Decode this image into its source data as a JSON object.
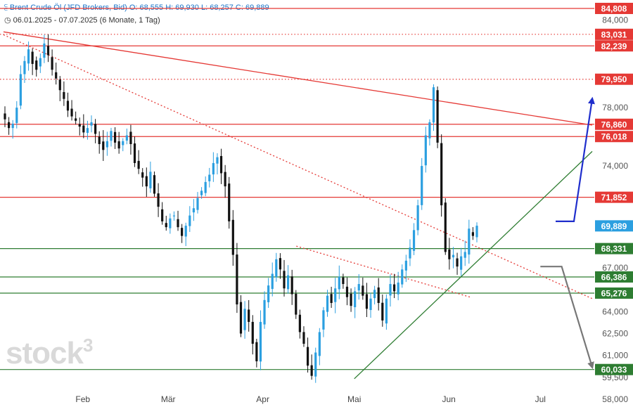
{
  "header": {
    "instrument": "Brent Crude Öl (JFD Brokers, Bid)",
    "ohlc": "O: 68,555   H: 69,930   L: 68,257   C: 69,889",
    "range": "06.01.2025 - 07.07.2025",
    "period": "(6 Monate, 1 Tag)"
  },
  "logo": {
    "text": "stock",
    "sup": "3"
  },
  "colors": {
    "up": "#2b9fe0",
    "down": "#111111",
    "resistance": "#e53935",
    "support": "#2e7d32",
    "bull_arrow": "#1f2ecc",
    "bear_arrow": "#777777",
    "price_label": "#2b9fe0"
  },
  "chart_data": {
    "type": "candlestick",
    "y_axis": {
      "ticks": [
        "84,000",
        "78,000",
        "76,000",
        "74,000",
        "67,000",
        "64,000",
        "62,500",
        "61,000",
        "59,500",
        "58,000"
      ],
      "tick_values": [
        84.0,
        78.0,
        76.0,
        74.0,
        67.0,
        64.0,
        62.5,
        61.0,
        59.5,
        58.0
      ]
    },
    "x_axis": {
      "labels": [
        "Feb",
        "Mär",
        "Apr",
        "Mai",
        "Jun",
        "Jul"
      ]
    },
    "levels": [
      {
        "label": "84,808",
        "value": 84.808,
        "color": "#e53935",
        "style": "solid"
      },
      {
        "label": "83,031",
        "value": 83.031,
        "color": "#e53935",
        "style": "dotted"
      },
      {
        "label": "82,239",
        "value": 82.239,
        "color": "#e53935",
        "style": "solid"
      },
      {
        "label": "79,950",
        "value": 79.95,
        "color": "#e53935",
        "style": "dotted"
      },
      {
        "label": "76,860",
        "value": 76.86,
        "color": "#e53935",
        "style": "solid"
      },
      {
        "label": "76,018",
        "value": 76.018,
        "color": "#e53935",
        "style": "solid"
      },
      {
        "label": "71,852",
        "value": 71.852,
        "color": "#e53935",
        "style": "solid"
      },
      {
        "label": "69,889",
        "value": 69.889,
        "color": "#2b9fe0",
        "style": "none"
      },
      {
        "label": "68,331",
        "value": 68.331,
        "color": "#2e7d32",
        "style": "solid"
      },
      {
        "label": "66,386",
        "value": 66.386,
        "color": "#2e7d32",
        "style": "solid"
      },
      {
        "label": "65,276",
        "value": 65.276,
        "color": "#2e7d32",
        "style": "solid"
      },
      {
        "label": "60,033",
        "value": 60.033,
        "color": "#2e7d32",
        "style": "solid"
      }
    ],
    "close_series": [
      77.2,
      76.6,
      76.9,
      78.0,
      80.3,
      81.2,
      82.0,
      81.0,
      80.6,
      81.4,
      82.4,
      81.6,
      80.6,
      80.0,
      79.2,
      78.6,
      77.8,
      77.4,
      77.1,
      76.7,
      76.3,
      76.6,
      77.0,
      76.2,
      75.5,
      75.1,
      75.7,
      76.4,
      75.6,
      75.2,
      75.7,
      76.1,
      75.5,
      74.2,
      73.8,
      73.2,
      72.6,
      73.6,
      72.1,
      71.2,
      70.2,
      69.8,
      70.4,
      70.6,
      69.8,
      69.2,
      69.9,
      70.6,
      71.1,
      71.8,
      72.3,
      72.9,
      73.4,
      74.2,
      74.6,
      73.5,
      72.6,
      70.2,
      67.9,
      64.5,
      62.5,
      64.2,
      63.3,
      61.8,
      60.6,
      63.3,
      64.8,
      65.8,
      66.6,
      67.6,
      66.9,
      65.6,
      66.5,
      65.2,
      63.8,
      62.6,
      61.8,
      60.3,
      59.6,
      61.2,
      62.6,
      64.1,
      65.1,
      64.6,
      65.6,
      66.4,
      65.9,
      65.0,
      64.4,
      65.4,
      65.9,
      65.1,
      64.2,
      64.9,
      65.5,
      64.6,
      63.4,
      64.9,
      65.9,
      65.4,
      66.0,
      66.9,
      67.5,
      68.4,
      69.6,
      71.3,
      74.0,
      76.1,
      77.0,
      79.4,
      75.6,
      71.3,
      68.1,
      67.6,
      67.9,
      67.1,
      67.8,
      68.1,
      69.7,
      69.2,
      69.9
    ],
    "trendlines": [
      {
        "name": "",
        "from": [
          "2025-01-06",
          83.2
        ],
        "to": [
          "2025-07-18",
          76.8
        ],
        "color": "#e53935",
        "style": "solid"
      },
      {
        "name": "",
        "from": [
          "2025-01-06",
          83.0
        ],
        "to": [
          "2025-07-18",
          64.9
        ],
        "color": "#e53935",
        "style": "dotted"
      },
      {
        "name": "",
        "from": [
          "2025-04-12",
          68.5
        ],
        "to": [
          "2025-06-08",
          65.0
        ],
        "color": "#e53935",
        "style": "dotted"
      },
      {
        "name": "",
        "from": [
          "2025-05-01",
          59.4
        ],
        "to": [
          "2025-07-18",
          75.0
        ],
        "color": "#2e7d32",
        "style": "solid"
      }
    ],
    "arrows": [
      {
        "name": "",
        "color": "#1f2ecc",
        "path": [
          [
            "2025-07-06",
            70.2
          ],
          [
            "2025-07-12",
            70.2
          ],
          [
            "2025-07-18",
            78.6
          ]
        ]
      },
      {
        "name": "",
        "color": "#777777",
        "path": [
          [
            "2025-07-01",
            67.1
          ],
          [
            "2025-07-08",
            67.1
          ],
          [
            "2025-07-18",
            60.2
          ]
        ]
      }
    ],
    "grid": false,
    "legend": "none"
  }
}
